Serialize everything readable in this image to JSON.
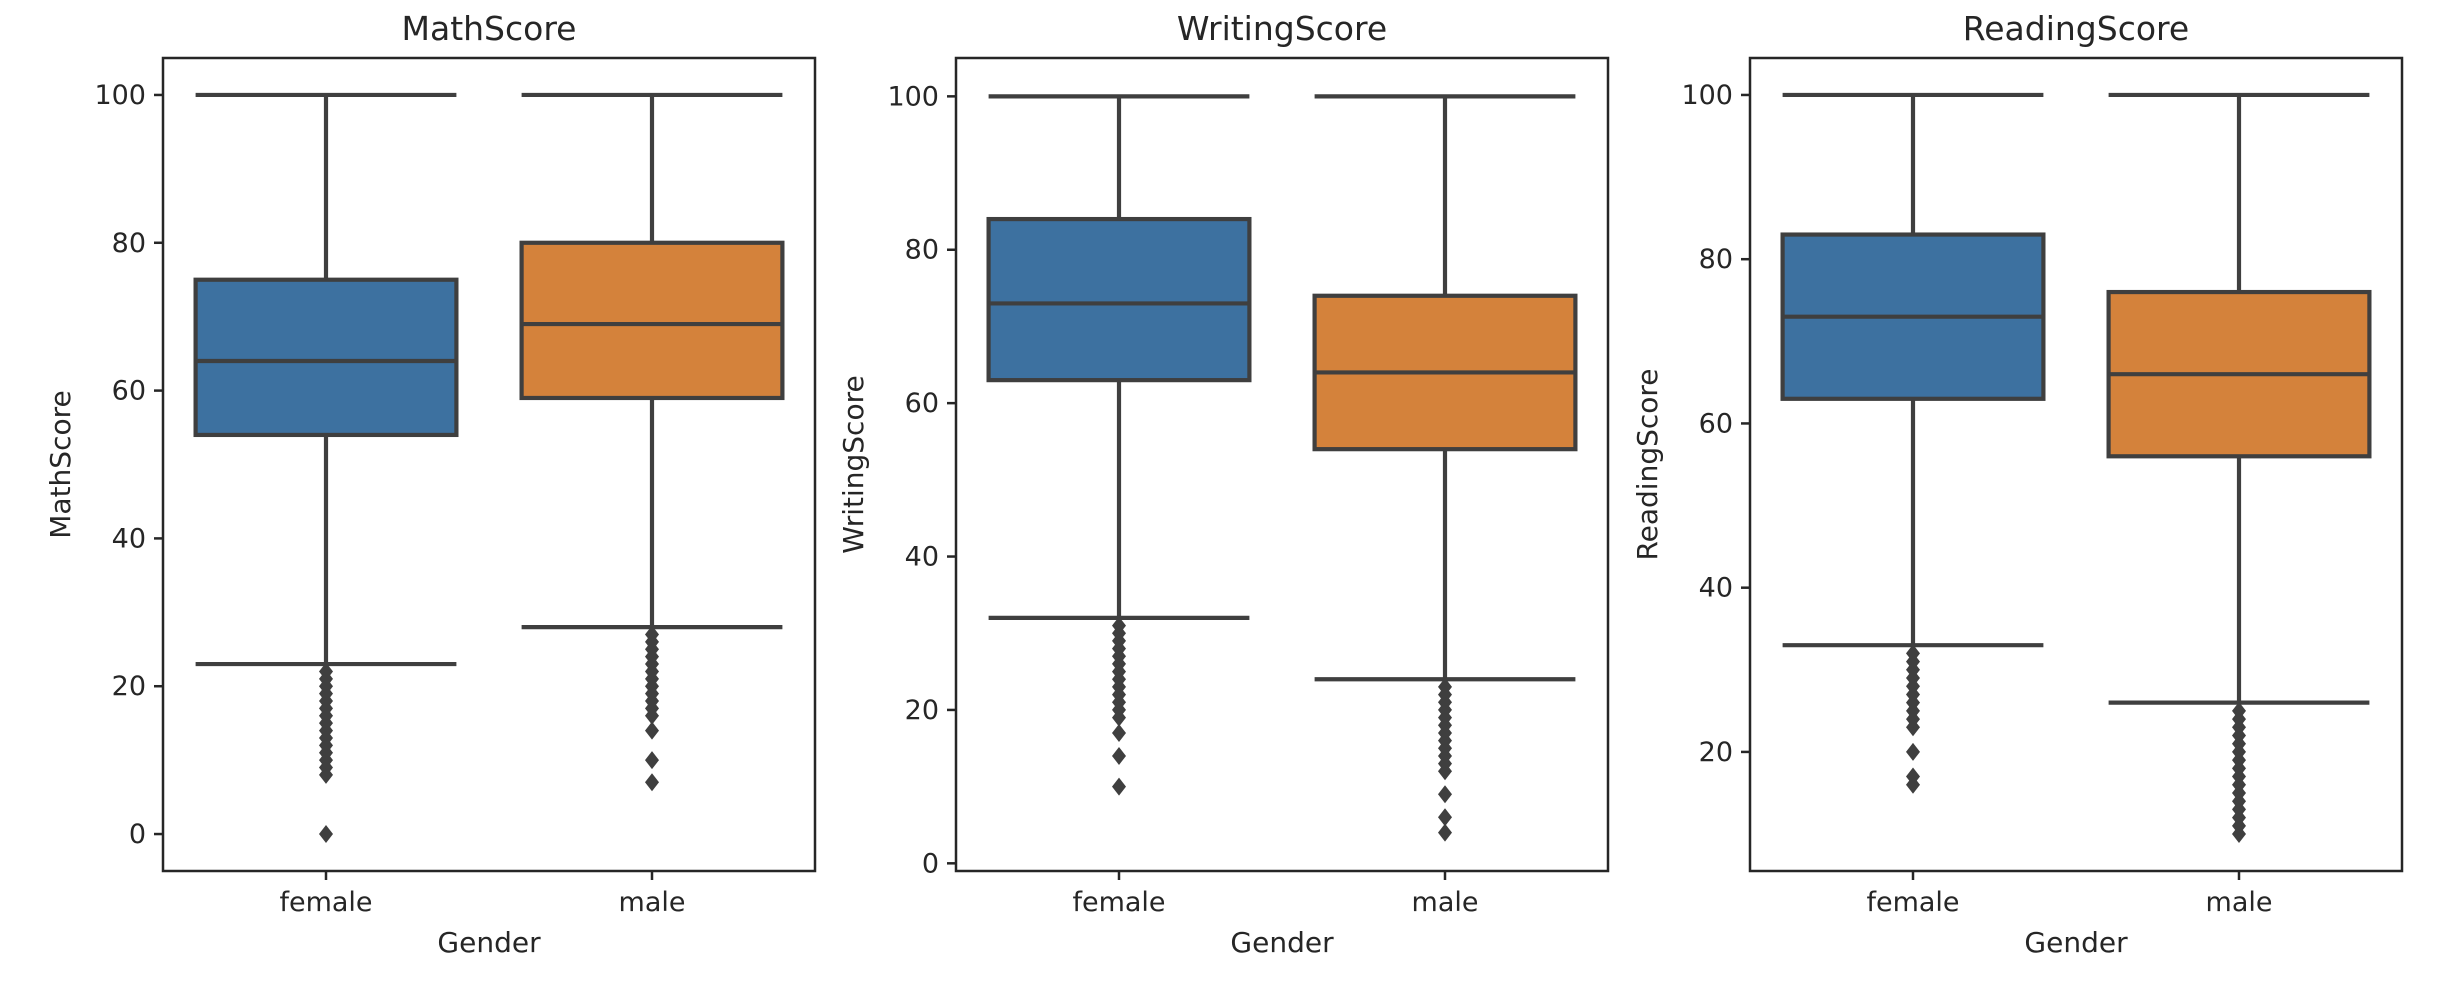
{
  "chart_data": [
    {
      "type": "box",
      "title": "MathScore",
      "xlabel": "Gender",
      "ylabel": "MathScore",
      "categories": [
        "female",
        "male"
      ],
      "ylim": [
        -5,
        105
      ],
      "yticks": [
        0,
        20,
        40,
        60,
        80,
        100
      ],
      "boxes": [
        {
          "category": "female",
          "whisker_low": 23,
          "q1": 54,
          "median": 64,
          "q3": 75,
          "whisker_high": 100,
          "outliers": [
            0,
            8,
            9,
            10,
            11,
            12,
            13,
            14,
            15,
            16,
            17,
            18,
            19,
            20,
            21,
            22
          ]
        },
        {
          "category": "male",
          "whisker_low": 28,
          "q1": 59,
          "median": 69,
          "q3": 80,
          "whisker_high": 100,
          "outliers": [
            7,
            10,
            14,
            16,
            17,
            18,
            19,
            20,
            21,
            22,
            23,
            24,
            25,
            26,
            27
          ]
        }
      ]
    },
    {
      "type": "box",
      "title": "WritingScore",
      "xlabel": "Gender",
      "ylabel": "WritingScore",
      "categories": [
        "female",
        "male"
      ],
      "ylim": [
        -1,
        105
      ],
      "yticks": [
        0,
        20,
        40,
        60,
        80,
        100
      ],
      "boxes": [
        {
          "category": "female",
          "whisker_low": 32,
          "q1": 63,
          "median": 73,
          "q3": 84,
          "whisker_high": 100,
          "outliers": [
            10,
            14,
            17,
            19,
            20,
            21,
            22,
            23,
            24,
            25,
            26,
            27,
            28,
            29,
            30,
            31
          ]
        },
        {
          "category": "male",
          "whisker_low": 24,
          "q1": 54,
          "median": 64,
          "q3": 74,
          "whisker_high": 100,
          "outliers": [
            4,
            6,
            9,
            12,
            13,
            14,
            15,
            16,
            17,
            18,
            19,
            20,
            21,
            22,
            23
          ]
        }
      ]
    },
    {
      "type": "box",
      "title": "ReadingScore",
      "xlabel": "Gender",
      "ylabel": "ReadingScore",
      "categories": [
        "female",
        "male"
      ],
      "ylim": [
        5.5,
        104.5
      ],
      "yticks": [
        20,
        40,
        60,
        80,
        100
      ],
      "boxes": [
        {
          "category": "female",
          "whisker_low": 33,
          "q1": 63,
          "median": 73,
          "q3": 83,
          "whisker_high": 100,
          "outliers": [
            16,
            17,
            20,
            23,
            24,
            25,
            26,
            27,
            28,
            29,
            30,
            31,
            32
          ]
        },
        {
          "category": "male",
          "whisker_low": 26,
          "q1": 56,
          "median": 66,
          "q3": 76,
          "whisker_high": 100,
          "outliers": [
            10,
            11,
            12,
            13,
            14,
            15,
            16,
            17,
            18,
            19,
            20,
            21,
            22,
            23,
            24,
            25
          ]
        }
      ]
    }
  ],
  "colors": {
    "female": "#3d71a0",
    "male": "#d4823b"
  }
}
